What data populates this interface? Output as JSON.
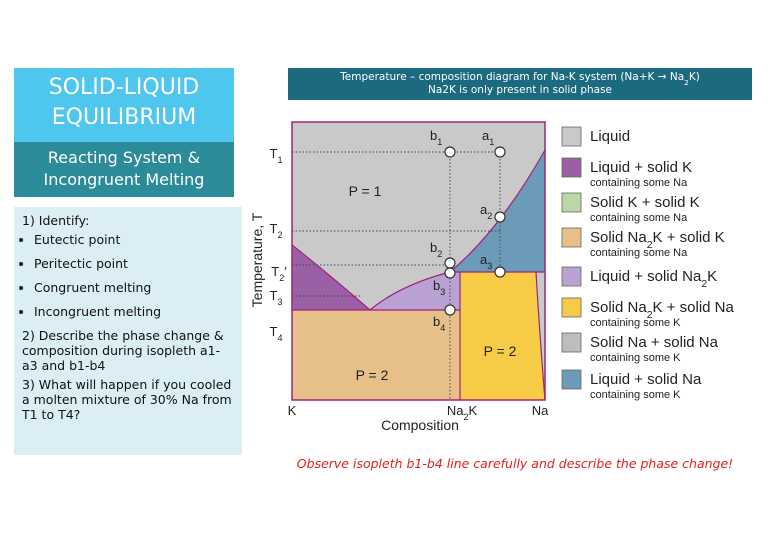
{
  "title": {
    "line1": "SOLID-LIQUID",
    "line2": "EQUILIBRIUM"
  },
  "subtitle": {
    "line1": "Reacting System &",
    "line2": "Incongruent Melting"
  },
  "tasks": {
    "q1": "1) Identify:",
    "bullets": [
      "Eutectic point",
      "Peritectic point",
      "Congruent melting",
      "Incongruent melting"
    ],
    "q2": "2) Describe the phase change & composition during isopleth a1-a3 and b1-b4",
    "q3": "3) What will happen if you cooled a molten mixture of 30% Na from T1 to T4?"
  },
  "header": {
    "line1": [
      "Temperature – composition diagram for Na-K system (Na+K → Na",
      "2",
      "K)"
    ],
    "line2": [
      "Na2K is only present in solid phase"
    ]
  },
  "diagram": {
    "y_axis_label": "Temperature, T",
    "x_axis_label": "Composition",
    "x_labels": {
      "k": [
        "K"
      ],
      "na2k": [
        "Na",
        "2",
        "K"
      ],
      "na": [
        "Na"
      ]
    },
    "temps": {
      "t1": [
        "T",
        "1"
      ],
      "t2": [
        "T",
        "2"
      ],
      "t2p": [
        "T",
        "2",
        "′"
      ],
      "t3": [
        "T",
        "3"
      ],
      "t4": [
        "T",
        "4"
      ]
    },
    "points": {
      "b1": [
        "b",
        "1"
      ],
      "a1": [
        "a",
        "1"
      ],
      "a2": [
        "a",
        "2"
      ],
      "b2": [
        "b",
        "2"
      ],
      "a3": [
        "a",
        "3"
      ],
      "b3": [
        "b",
        "3"
      ],
      "b4": [
        "b",
        "4"
      ]
    },
    "phase_labels": {
      "p1": [
        "P = 1"
      ],
      "p2_left": [
        "P = 2"
      ],
      "p2_right": [
        "P = 2"
      ]
    }
  },
  "legend": [
    {
      "main": [
        "Liquid"
      ],
      "color": "#c9c9c9"
    },
    {
      "main": [
        "Liquid + solid K"
      ],
      "sub": "containing some Na",
      "color": "#9b5fa6"
    },
    {
      "main": [
        "Solid K + solid K"
      ],
      "sub": "containing some Na",
      "color": "#b9d7a8"
    },
    {
      "main": [
        "Solid Na",
        "2",
        "K + solid K"
      ],
      "sub": "containing some Na",
      "color": "#e6c088"
    },
    {
      "main": [
        "Liquid + solid Na",
        "2",
        "K"
      ],
      "color": "#b9a2d3"
    },
    {
      "main": [
        "Solid Na",
        "2",
        "K + solid Na"
      ],
      "sub": "containing some K",
      "color": "#f6cb45"
    },
    {
      "main": [
        "Solid Na + solid Na"
      ],
      "sub": "containing some K",
      "color": "#bdbdbd"
    },
    {
      "main": [
        "Liquid + solid Na"
      ],
      "sub": "containing some K",
      "color": "#6b9bb8"
    }
  ],
  "caption": "Observe isopleth b1-b4 line carefully and describe the phase change!"
}
